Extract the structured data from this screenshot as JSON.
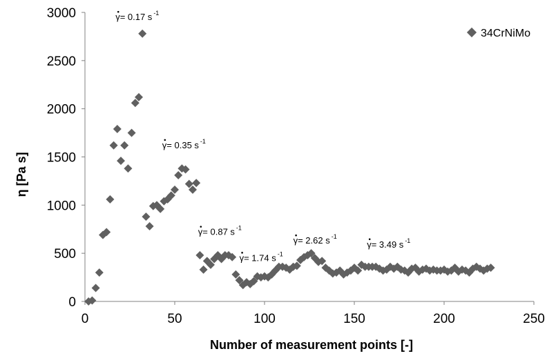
{
  "chart_data": {
    "type": "scatter",
    "title": "",
    "xlabel": "Number of measurement points [-]",
    "ylabel": "η [Pa s]",
    "xlim": [
      0,
      250
    ],
    "ylim": [
      0,
      3000
    ],
    "x_ticks": [
      "0",
      "50",
      "100",
      "150",
      "200",
      "250"
    ],
    "y_ticks": [
      "0",
      "500",
      "1000",
      "1500",
      "2000",
      "2500",
      "3000"
    ],
    "grid": false,
    "legend_position": "top-right",
    "marker_color": "#606060",
    "series": [
      {
        "name": "34CrNiMo",
        "x": [
          2,
          4,
          6,
          8,
          10,
          12,
          14,
          16,
          18,
          20,
          22,
          24,
          26,
          28,
          30,
          32,
          34,
          36,
          38,
          40,
          42,
          44,
          46,
          48,
          50,
          52,
          54,
          56,
          58,
          60,
          62,
          64,
          66,
          68,
          70,
          72,
          74,
          76,
          78,
          80,
          82,
          84,
          86,
          88,
          90,
          92,
          94,
          96,
          98,
          100,
          102,
          104,
          106,
          108,
          110,
          112,
          114,
          116,
          118,
          120,
          122,
          124,
          126,
          128,
          130,
          132,
          134,
          136,
          138,
          140,
          142,
          144,
          146,
          148,
          150,
          152,
          154,
          156,
          158,
          160,
          162,
          164,
          166,
          168,
          170,
          172,
          174,
          176,
          178,
          180,
          182,
          184,
          186,
          188,
          190,
          192,
          194,
          196,
          198,
          200,
          202,
          204,
          206,
          208,
          210,
          212,
          214,
          216,
          218,
          220,
          222,
          224,
          226
        ],
        "y": [
          0,
          10,
          140,
          300,
          690,
          720,
          1060,
          1620,
          1790,
          1460,
          1620,
          1380,
          1750,
          2060,
          2120,
          2780,
          880,
          780,
          990,
          1000,
          960,
          1040,
          1060,
          1100,
          1160,
          1310,
          1380,
          1370,
          1220,
          1160,
          1230,
          480,
          330,
          420,
          380,
          440,
          480,
          440,
          480,
          480,
          460,
          280,
          220,
          170,
          200,
          180,
          210,
          260,
          250,
          260,
          250,
          280,
          320,
          360,
          360,
          350,
          330,
          360,
          370,
          430,
          460,
          480,
          500,
          450,
          410,
          420,
          350,
          320,
          290,
          300,
          320,
          280,
          300,
          320,
          350,
          320,
          380,
          360,
          360,
          360,
          360,
          340,
          320,
          330,
          360,
          340,
          360,
          330,
          320,
          300,
          340,
          350,
          310,
          330,
          340,
          320,
          330,
          320,
          320,
          330,
          310,
          320,
          350,
          310,
          330,
          320,
          300,
          340,
          360,
          340,
          320,
          340,
          350
        ]
      }
    ],
    "annotations": [
      {
        "label": "γ= 0.17 s",
        "sup": "-1",
        "x": 17,
        "y": 2920
      },
      {
        "label": "γ= 0.35 s",
        "sup": "-1",
        "x": 43,
        "y": 1590
      },
      {
        "label": "γ= 0.87 s",
        "sup": "-1",
        "x": 63,
        "y": 690
      },
      {
        "label": "γ= 1.74 s",
        "sup": "-1",
        "x": 86,
        "y": 420
      },
      {
        "label": "γ= 2.62 s",
        "sup": "-1",
        "x": 116,
        "y": 600
      },
      {
        "label": "γ= 3.49 s",
        "sup": "-1",
        "x": 157,
        "y": 560
      }
    ]
  }
}
